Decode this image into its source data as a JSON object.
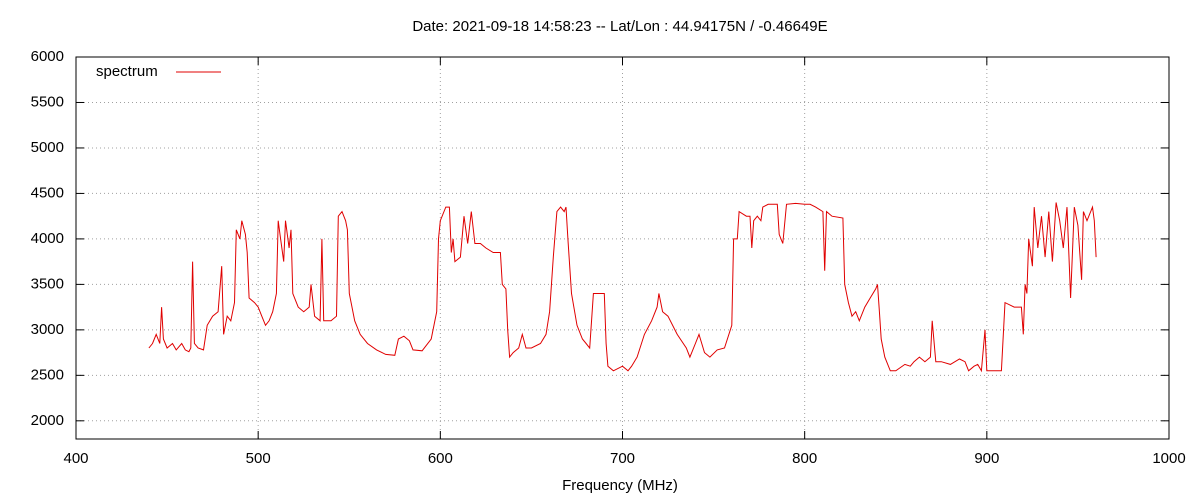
{
  "chart_data": {
    "type": "line",
    "title": "Date: 2021-09-18 14:58:23  --  Lat/Lon : 44.94175N / -0.46649E",
    "x_label": "Frequency (MHz)",
    "xlim": [
      400,
      1000
    ],
    "xticks": [
      400,
      500,
      600,
      700,
      800,
      900,
      1000
    ],
    "ylim": [
      1800,
      6000
    ],
    "yticks": [
      2000,
      2500,
      3000,
      3500,
      4000,
      4500,
      5000,
      5500,
      6000
    ],
    "grid": true,
    "legend": "top-left",
    "series": [
      {
        "name": "spectrum",
        "color": "#e00000",
        "x": [
          440,
          442,
          444,
          446,
          447,
          448,
          450,
          453,
          455,
          458,
          460,
          462,
          463,
          464,
          465,
          467,
          470,
          472,
          475,
          478,
          480,
          481,
          483,
          485,
          487,
          488,
          490,
          491,
          493,
          494,
          495,
          498,
          500,
          502,
          504,
          506,
          508,
          510,
          511,
          512,
          514,
          515,
          517,
          518,
          519,
          522,
          525,
          528,
          529,
          531,
          534,
          535,
          536,
          540,
          543,
          544,
          546,
          548,
          549,
          550,
          553,
          556,
          560,
          565,
          570,
          575,
          577,
          580,
          583,
          585,
          590,
          595,
          598,
          599,
          600,
          603,
          605,
          606,
          607,
          608,
          611,
          613,
          615,
          617,
          619,
          622,
          625,
          629,
          630,
          633,
          634,
          636,
          637,
          638,
          640,
          643,
          645,
          647,
          650,
          655,
          658,
          660,
          662,
          664,
          666,
          668,
          669,
          670,
          672,
          675,
          678,
          680,
          682,
          684,
          687,
          690,
          691,
          692,
          695,
          700,
          703,
          705,
          708,
          712,
          716,
          719,
          720,
          722,
          725,
          730,
          735,
          737,
          740,
          742,
          745,
          748,
          752,
          756,
          760,
          761,
          763,
          764,
          768,
          770,
          771,
          772,
          774,
          776,
          777,
          780,
          783,
          785,
          786,
          788,
          790,
          795,
          800,
          803,
          806,
          810,
          811,
          812,
          815,
          821,
          822,
          824,
          826,
          828,
          830,
          833,
          836,
          839,
          840,
          841,
          842,
          844,
          847,
          850,
          855,
          858,
          860,
          863,
          866,
          869,
          870,
          872,
          875,
          880,
          885,
          888,
          890,
          893,
          895,
          897,
          899,
          900,
          905,
          908,
          910,
          915,
          919,
          920,
          921,
          922,
          923,
          925,
          926,
          928,
          930,
          932,
          934,
          936,
          938,
          940,
          942,
          944,
          946,
          948,
          950,
          952,
          953,
          955,
          957,
          958,
          959,
          960
        ],
        "values": [
          2800,
          2850,
          2950,
          2850,
          3250,
          2900,
          2800,
          2850,
          2780,
          2850,
          2780,
          2760,
          2800,
          3750,
          2850,
          2800,
          2780,
          3050,
          3150,
          3200,
          3700,
          2950,
          3150,
          3100,
          3300,
          4100,
          4000,
          4200,
          4050,
          3850,
          3350,
          3300,
          3250,
          3150,
          3050,
          3100,
          3200,
          3400,
          4200,
          4050,
          3750,
          4200,
          3900,
          4100,
          3400,
          3250,
          3200,
          3250,
          3500,
          3150,
          3100,
          4000,
          3100,
          3100,
          3150,
          4250,
          4300,
          4200,
          4100,
          3400,
          3100,
          2950,
          2850,
          2780,
          2730,
          2720,
          2900,
          2930,
          2880,
          2780,
          2770,
          2900,
          3200,
          4000,
          4200,
          4350,
          4350,
          3850,
          4000,
          3750,
          3800,
          4250,
          3950,
          4300,
          3950,
          3950,
          3900,
          3850,
          3850,
          3850,
          3500,
          3450,
          3000,
          2700,
          2750,
          2800,
          2950,
          2800,
          2800,
          2850,
          2950,
          3200,
          3800,
          4300,
          4350,
          4300,
          4350,
          4000,
          3400,
          3050,
          2900,
          2850,
          2800,
          3400,
          3400,
          3400,
          2850,
          2600,
          2550,
          2600,
          2550,
          2600,
          2700,
          2950,
          3100,
          3250,
          3400,
          3200,
          3150,
          2950,
          2800,
          2700,
          2850,
          2950,
          2750,
          2700,
          2780,
          2800,
          3050,
          4000,
          4000,
          4300,
          4250,
          4250,
          3900,
          4200,
          4250,
          4200,
          4350,
          4380,
          4380,
          4380,
          4050,
          3950,
          4380,
          4390,
          4380,
          4380,
          4350,
          4300,
          3650,
          4300,
          4250,
          4230,
          3500,
          3300,
          3150,
          3200,
          3100,
          3250,
          3350,
          3450,
          3500,
          3200,
          2900,
          2700,
          2550,
          2550,
          2620,
          2600,
          2650,
          2700,
          2650,
          2700,
          3100,
          2650,
          2650,
          2620,
          2680,
          2650,
          2550,
          2600,
          2620,
          2550,
          3000,
          2550,
          2550,
          2550,
          3300,
          3250,
          3250,
          2950,
          3500,
          3400,
          4000,
          3700,
          4350,
          3900,
          4250,
          3800,
          4300,
          3750,
          4400,
          4200,
          3900,
          4350,
          3350,
          4350,
          4150,
          3550,
          4300,
          4200,
          4300,
          4350,
          4200,
          3800
        ]
      }
    ]
  }
}
